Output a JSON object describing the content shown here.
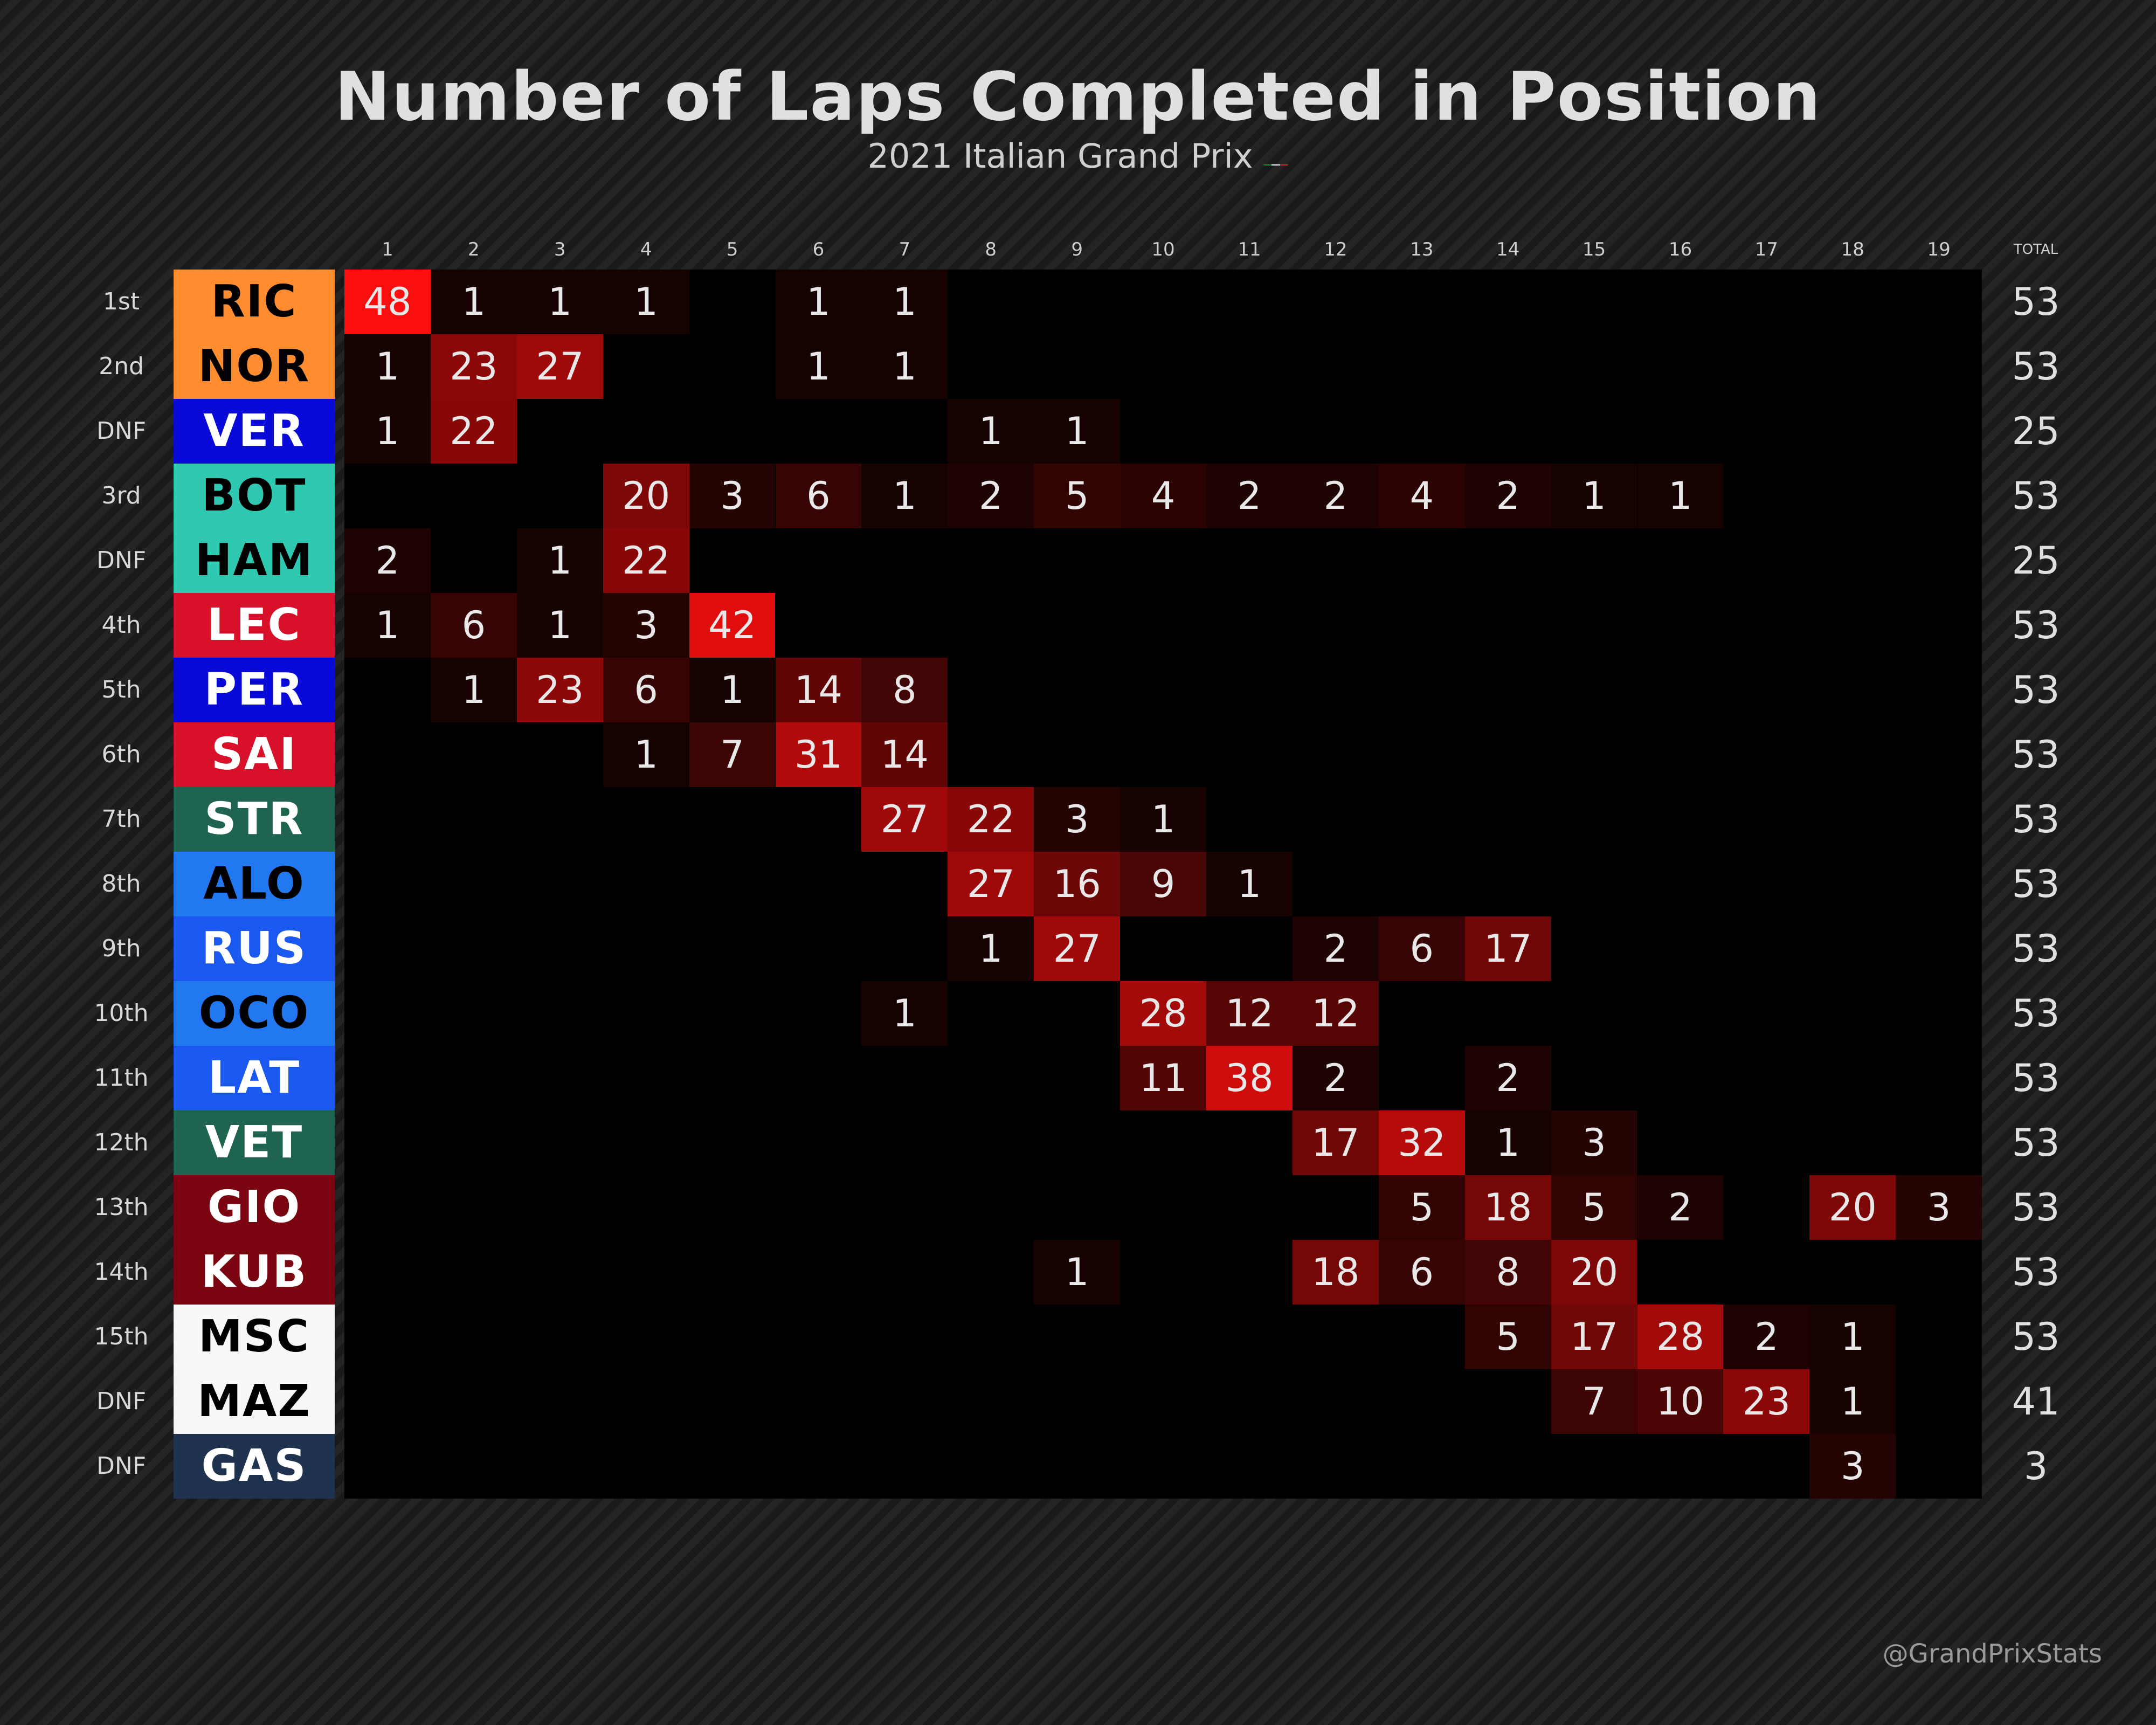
{
  "header": {
    "title": "Number of Laps Completed in Position",
    "subtitle": "2021 Italian Grand Prix"
  },
  "credit": "@GrandPrixStats",
  "flag_colors": [
    "#009246",
    "#ffffff",
    "#ce2b37"
  ],
  "chart_data": {
    "type": "heatmap",
    "title": "Number of Laps Completed in Position",
    "subtitle": "2021 Italian Grand Prix",
    "columns": [
      "1",
      "2",
      "3",
      "4",
      "5",
      "6",
      "7",
      "8",
      "9",
      "10",
      "11",
      "12",
      "13",
      "14",
      "15",
      "16",
      "17",
      "18",
      "19"
    ],
    "total_label": "TOTAL",
    "rows": [
      {
        "pos": "1st",
        "driver": "RIC",
        "bg": "#ff8c2f",
        "fg": "#000000",
        "cells": {
          "1": 48,
          "2": 1,
          "3": 1,
          "4": 1,
          "6": 1,
          "7": 1
        },
        "total": 53
      },
      {
        "pos": "2nd",
        "driver": "NOR",
        "bg": "#ff8c2f",
        "fg": "#000000",
        "cells": {
          "1": 1,
          "2": 23,
          "3": 27,
          "6": 1,
          "7": 1
        },
        "total": 53
      },
      {
        "pos": "DNF",
        "driver": "VER",
        "bg": "#0a0ad8",
        "fg": "#ffffff",
        "cells": {
          "1": 1,
          "2": 22,
          "8": 1,
          "9": 1
        },
        "total": 25
      },
      {
        "pos": "3rd",
        "driver": "BOT",
        "bg": "#2ec9b0",
        "fg": "#000000",
        "cells": {
          "4": 20,
          "5": 3,
          "6": 6,
          "7": 1,
          "8": 2,
          "9": 5,
          "10": 4,
          "11": 2,
          "12": 2,
          "13": 4,
          "14": 2,
          "15": 1,
          "16": 1
        },
        "total": 53
      },
      {
        "pos": "DNF",
        "driver": "HAM",
        "bg": "#2ec9b0",
        "fg": "#000000",
        "cells": {
          "1": 2,
          "3": 1,
          "4": 22
        },
        "total": 25
      },
      {
        "pos": "4th",
        "driver": "LEC",
        "bg": "#d8102a",
        "fg": "#ffffff",
        "cells": {
          "1": 1,
          "2": 6,
          "3": 1,
          "4": 3,
          "5": 42
        },
        "total": 53
      },
      {
        "pos": "5th",
        "driver": "PER",
        "bg": "#0a0ad8",
        "fg": "#ffffff",
        "cells": {
          "2": 1,
          "3": 23,
          "4": 6,
          "5": 1,
          "6": 14,
          "7": 8
        },
        "total": 53
      },
      {
        "pos": "6th",
        "driver": "SAI",
        "bg": "#d8102a",
        "fg": "#ffffff",
        "cells": {
          "4": 1,
          "5": 7,
          "6": 31,
          "7": 14
        },
        "total": 53
      },
      {
        "pos": "7th",
        "driver": "STR",
        "bg": "#1f6450",
        "fg": "#ffffff",
        "cells": {
          "7": 27,
          "8": 22,
          "9": 3,
          "10": 1
        },
        "total": 53
      },
      {
        "pos": "8th",
        "driver": "ALO",
        "bg": "#2178f0",
        "fg": "#000000",
        "cells": {
          "8": 27,
          "9": 16,
          "10": 9,
          "11": 1
        },
        "total": 53
      },
      {
        "pos": "9th",
        "driver": "RUS",
        "bg": "#1a58f0",
        "fg": "#ffffff",
        "cells": {
          "8": 1,
          "9": 27,
          "12": 2,
          "13": 6,
          "14": 17
        },
        "total": 53
      },
      {
        "pos": "10th",
        "driver": "OCO",
        "bg": "#2178f0",
        "fg": "#000000",
        "cells": {
          "7": 1,
          "10": 28,
          "11": 12,
          "12": 12
        },
        "total": 53
      },
      {
        "pos": "11th",
        "driver": "LAT",
        "bg": "#1a58f0",
        "fg": "#ffffff",
        "cells": {
          "10": 11,
          "11": 38,
          "12": 2,
          "14": 2
        },
        "total": 53
      },
      {
        "pos": "12th",
        "driver": "VET",
        "bg": "#1f6450",
        "fg": "#ffffff",
        "cells": {
          "12": 17,
          "13": 32,
          "14": 1,
          "15": 3
        },
        "total": 53
      },
      {
        "pos": "13th",
        "driver": "GIO",
        "bg": "#7a0510",
        "fg": "#ffffff",
        "cells": {
          "13": 5,
          "14": 18,
          "15": 5,
          "16": 2,
          "18": 20,
          "19": 3
        },
        "total": 53
      },
      {
        "pos": "14th",
        "driver": "KUB",
        "bg": "#7a0510",
        "fg": "#ffffff",
        "cells": {
          "9": 1,
          "12": 18,
          "13": 6,
          "14": 8,
          "15": 20
        },
        "total": 53
      },
      {
        "pos": "15th",
        "driver": "MSC",
        "bg": "#f8f8f8",
        "fg": "#000000",
        "cells": {
          "14": 5,
          "15": 17,
          "16": 28,
          "17": 2,
          "18": 1
        },
        "total": 53
      },
      {
        "pos": "DNF",
        "driver": "MAZ",
        "bg": "#f8f8f8",
        "fg": "#000000",
        "cells": {
          "15": 7,
          "16": 10,
          "17": 23,
          "18": 1
        },
        "total": 41
      },
      {
        "pos": "DNF",
        "driver": "GAS",
        "bg": "#1f3350",
        "fg": "#ffffff",
        "cells": {
          "18": 3
        },
        "total": 3
      }
    ]
  }
}
